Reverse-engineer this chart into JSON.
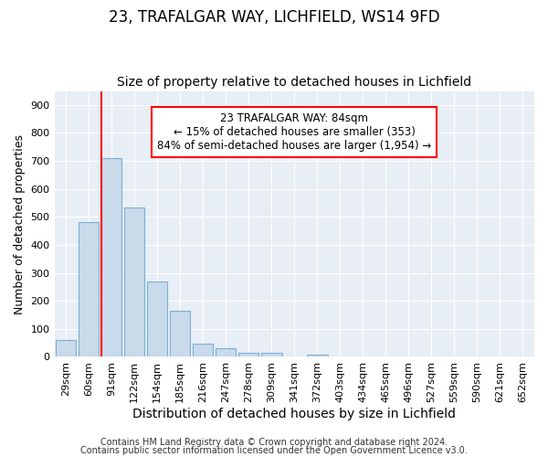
{
  "title1": "23, TRAFALGAR WAY, LICHFIELD, WS14 9FD",
  "title2": "Size of property relative to detached houses in Lichfield",
  "xlabel": "Distribution of detached houses by size in Lichfield",
  "ylabel": "Number of detached properties",
  "categories": [
    "29sqm",
    "60sqm",
    "91sqm",
    "122sqm",
    "154sqm",
    "185sqm",
    "216sqm",
    "247sqm",
    "278sqm",
    "309sqm",
    "341sqm",
    "372sqm",
    "403sqm",
    "434sqm",
    "465sqm",
    "496sqm",
    "527sqm",
    "559sqm",
    "590sqm",
    "621sqm",
    "652sqm"
  ],
  "bar_values": [
    60,
    480,
    710,
    535,
    270,
    165,
    47,
    32,
    15,
    13,
    0,
    8,
    0,
    0,
    0,
    0,
    0,
    0,
    0,
    0,
    0
  ],
  "bar_color": "#c9daea",
  "bar_edge_color": "#7bafd4",
  "vline_color": "red",
  "annotation_line1": "23 TRAFALGAR WAY: 84sqm",
  "annotation_line2": "← 15% of detached houses are smaller (353)",
  "annotation_line3": "84% of semi-detached houses are larger (1,954) →",
  "annotation_box_color": "red",
  "ylim": [
    0,
    950
  ],
  "yticks": [
    0,
    100,
    200,
    300,
    400,
    500,
    600,
    700,
    800,
    900
  ],
  "fig_bg_color": "#ffffff",
  "plot_bg_color": "#e8eef5",
  "grid_color": "#ffffff",
  "footer1": "Contains HM Land Registry data © Crown copyright and database right 2024.",
  "footer2": "Contains public sector information licensed under the Open Government Licence v3.0.",
  "title1_fontsize": 12,
  "title2_fontsize": 10,
  "xlabel_fontsize": 10,
  "ylabel_fontsize": 9,
  "tick_fontsize": 8,
  "annotation_fontsize": 8.5,
  "footer_fontsize": 7
}
